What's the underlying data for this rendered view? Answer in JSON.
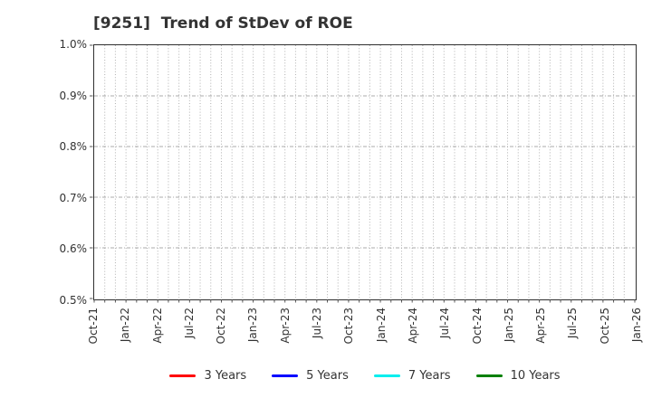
{
  "page": {
    "background": "#ffffff"
  },
  "chart_data": {
    "type": "line",
    "title": "[9251]  Trend of StDev of ROE",
    "xlabel": "",
    "ylabel": "",
    "ylim": [
      0.5,
      1.0
    ],
    "yticks": [
      {
        "value": 1.0,
        "label": "1.0%"
      },
      {
        "value": 0.9,
        "label": "0.9%"
      },
      {
        "value": 0.8,
        "label": "0.8%"
      },
      {
        "value": 0.7,
        "label": "0.7%"
      },
      {
        "value": 0.6,
        "label": "0.6%"
      },
      {
        "value": 0.5,
        "label": "0.5%"
      }
    ],
    "xtick_labels": [
      "Oct-21",
      "Jan-22",
      "Apr-22",
      "Jul-22",
      "Oct-22",
      "Jan-23",
      "Apr-23",
      "Jul-23",
      "Oct-23",
      "Jan-24",
      "Apr-24",
      "Jul-24",
      "Oct-24",
      "Jan-25",
      "Apr-25",
      "Jul-25",
      "Oct-25",
      "Jan-26"
    ],
    "x_total_months": 51,
    "x_months_per_label": 3,
    "grid": true,
    "grid_color": "#b0b0b0",
    "axis_color": "#2f2f2f",
    "text_color": "#333333",
    "legend_position": "bottom",
    "series": [
      {
        "name": "3 Years",
        "color": "#ff0000",
        "values": []
      },
      {
        "name": "5 Years",
        "color": "#0000ff",
        "values": []
      },
      {
        "name": "7 Years",
        "color": "#00eeee",
        "values": []
      },
      {
        "name": "10 Years",
        "color": "#008000",
        "values": []
      }
    ]
  }
}
